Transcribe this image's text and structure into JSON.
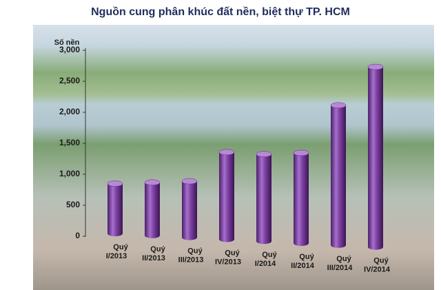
{
  "chart_data": {
    "type": "bar",
    "title": "Nguồn cung phân khúc đất nền, biệt thự TP. HCM",
    "y_label": "Số nền",
    "categories": [
      "Quý I/2013",
      "Quý II/2013",
      "Quý III/2013",
      "Quý IV/2013",
      "Quý I/2014",
      "Quý II/2014",
      "Quý III/2014",
      "Quý IV/2014"
    ],
    "values": [
      850,
      900,
      950,
      1450,
      1450,
      1500,
      2300,
      2950
    ],
    "color": "#7b3f9e",
    "ylim": [
      0,
      3000
    ],
    "yticks": [
      0,
      500,
      {
        "value": 1000,
        "label": "1,000"
      },
      {
        "value": 1500,
        "label": "1,500"
      },
      {
        "value": 2000,
        "label": "2,000"
      },
      {
        "value": 2500,
        "label": "2,500"
      },
      {
        "value": 3000,
        "label": "3,000"
      }
    ]
  }
}
